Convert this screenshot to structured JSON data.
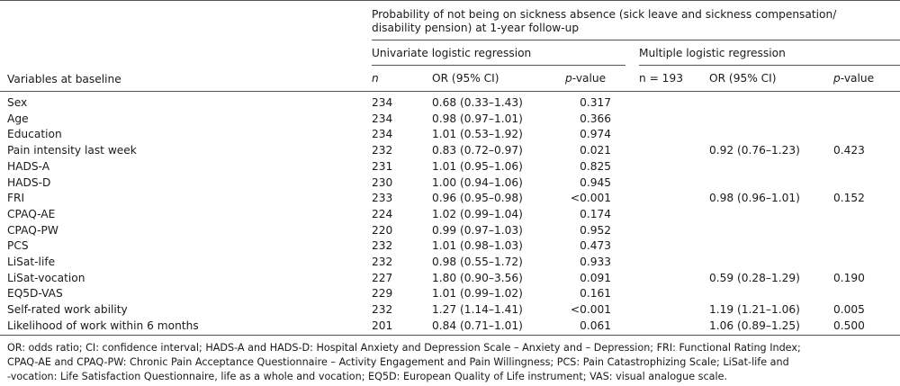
{
  "table": {
    "spanning_header": {
      "line1": "Probability of not being on sickness absence (sick leave and sickness compensation/",
      "line2": "disability pension) at 1-year follow-up"
    },
    "univariate_header": "Univariate logistic regression",
    "multiple_header": "Multiple logistic regression",
    "columns": {
      "variables": "Variables at baseline",
      "n": "n",
      "or": "OR (95% CI)",
      "p_italic": "p",
      "p_suffix": "-value",
      "n_multi": "n = 193",
      "or_multi": "OR (95% CI)",
      "p_multi_italic": "p",
      "p_multi_suffix": "-value"
    },
    "rows": [
      {
        "variable": "Sex",
        "n": "234",
        "or": "0.68 (0.33–1.43)",
        "p": "0.317",
        "or_m": "",
        "p_m": ""
      },
      {
        "variable": "Age",
        "n": "234",
        "or": "0.98 (0.97–1.01)",
        "p": "0.366",
        "or_m": "",
        "p_m": ""
      },
      {
        "variable": "Education",
        "n": "234",
        "or": "1.01 (0.53–1.92)",
        "p": "0.974",
        "or_m": "",
        "p_m": ""
      },
      {
        "variable": "Pain intensity last week",
        "n": "232",
        "or": "0.83 (0.72–0.97)",
        "p": "0.021",
        "or_m": "0.92 (0.76–1.23)",
        "p_m": "0.423"
      },
      {
        "variable": "HADS-A",
        "n": "231",
        "or": "1.01 (0.95–1.06)",
        "p": "0.825",
        "or_m": "",
        "p_m": ""
      },
      {
        "variable": "HADS-D",
        "n": "230",
        "or": "1.00 (0.94–1.06)",
        "p": "0.945",
        "or_m": "",
        "p_m": ""
      },
      {
        "variable": "FRI",
        "n": "233",
        "or": "0.96 (0.95–0.98)",
        "p": "<0.001",
        "or_m": "0.98 (0.96–1.01)",
        "p_m": "0.152"
      },
      {
        "variable": "CPAQ-AE",
        "n": "224",
        "or": "1.02 (0.99–1.04)",
        "p": "0.174",
        "or_m": "",
        "p_m": ""
      },
      {
        "variable": "CPAQ-PW",
        "n": "220",
        "or": "0.99 (0.97–1.03)",
        "p": "0.952",
        "or_m": "",
        "p_m": ""
      },
      {
        "variable": "PCS",
        "n": "232",
        "or": "1.01 (0.98–1.03)",
        "p": "0.473",
        "or_m": "",
        "p_m": ""
      },
      {
        "variable": "LiSat-life",
        "n": "232",
        "or": "0.98 (0.55–1.72)",
        "p": "0.933",
        "or_m": "",
        "p_m": ""
      },
      {
        "variable": "LiSat-vocation",
        "n": "227",
        "or": "1.80 (0.90–3.56)",
        "p": "0.091",
        "or_m": "0.59 (0.28–1.29)",
        "p_m": "0.190"
      },
      {
        "variable": "EQ5D-VAS",
        "n": "229",
        "or": "1.01 (0.99–1.02)",
        "p": "0.161",
        "or_m": "",
        "p_m": ""
      },
      {
        "variable": "Self-rated work ability",
        "n": "232",
        "or": "1.27 (1.14–1.41)",
        "p": "<0.001",
        "or_m": "1.19 (1.21–1.06)",
        "p_m": "0.005"
      },
      {
        "variable": "Likelihood of work within 6 months",
        "n": "201",
        "or": "0.84 (0.71–1.01)",
        "p": "0.061",
        "or_m": "1.06 (0.89–1.25)",
        "p_m": "0.500"
      }
    ],
    "footnote": {
      "line1": "OR: odds ratio; CI: confidence interval; HADS-A and HADS-D: Hospital Anxiety and Depression Scale – Anxiety and – Depression; FRI: Functional Rating Index;",
      "line2": "CPAQ-AE and CPAQ-PW: Chronic Pain Acceptance Questionnaire – Activity Engagement and Pain Willingness; PCS: Pain Catastrophizing Scale; LiSat-life and",
      "line3": "-vocation: Life Satisfaction Questionnaire, life as a whole and vocation; EQ5D: European Quality of Life instrument; VAS: visual analogue scale."
    }
  }
}
